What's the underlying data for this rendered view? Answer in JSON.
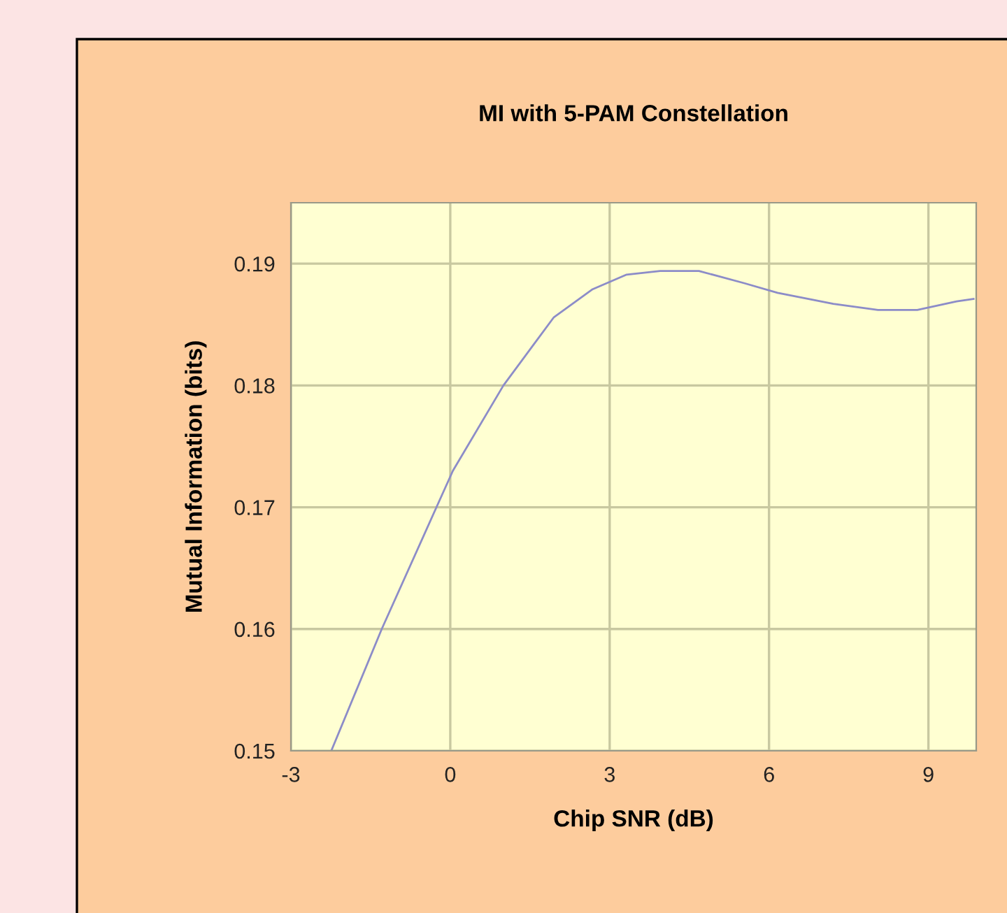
{
  "chart_data": {
    "type": "line",
    "title": "MI with 5-PAM Constellation",
    "xlabel": "Chip SNR (dB)",
    "ylabel": "Mutual Information (bits)",
    "x": [
      -2.24,
      -1.29,
      -0.26,
      0.05,
      1.0,
      1.95,
      2.68,
      3.32,
      3.95,
      4.68,
      5.53,
      6.16,
      7.21,
      8.05,
      8.79,
      9.53,
      9.85
    ],
    "series": [
      {
        "color": "#8c8cc8",
        "values": [
          0.15,
          0.16,
          0.17,
          0.173,
          0.18,
          0.1856,
          0.1879,
          0.1891,
          0.1894,
          0.1894,
          0.1884,
          0.1876,
          0.1867,
          0.1862,
          0.1862,
          0.1869,
          0.1871
        ]
      }
    ],
    "xlim": [
      -3,
      9.9
    ],
    "xticks": [
      -3,
      0,
      3,
      6,
      9
    ],
    "ylim": [
      0.15,
      0.195
    ],
    "yticks": [
      0.15,
      0.16,
      0.17,
      0.18,
      0.19
    ],
    "grid": true,
    "marker": "none",
    "line_style": "solid",
    "legend": false
  }
}
